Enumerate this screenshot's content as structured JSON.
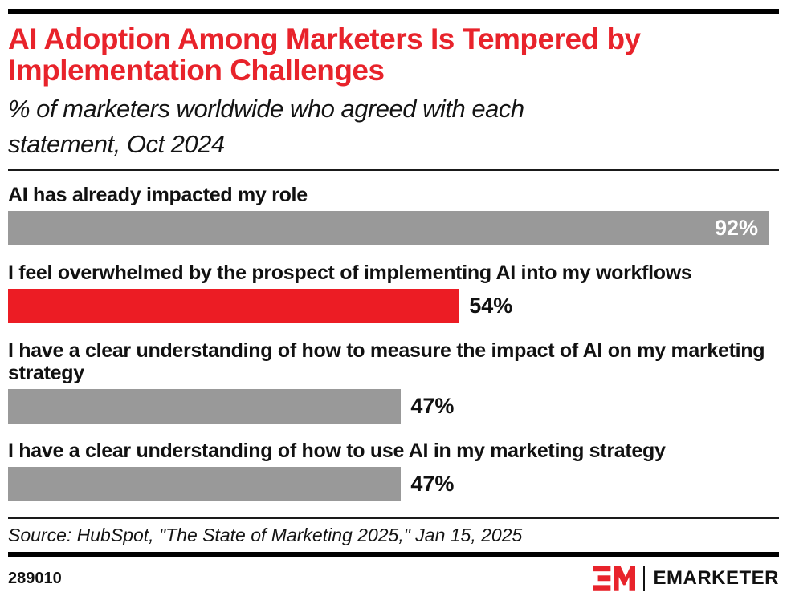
{
  "page": {
    "background": "#ffffff",
    "accent_red": "#E8232B",
    "bar_red": "#EC1C24",
    "bar_gray": "#999999"
  },
  "header": {
    "title_line1": "AI Adoption Among Marketers Is Tempered by",
    "title_line2": "Implementation Challenges",
    "subtitle_line1": "% of marketers worldwide who agreed with each",
    "subtitle_line2": "statement, Oct 2024"
  },
  "chart_data": {
    "type": "bar",
    "orientation": "horizontal",
    "title": "AI Adoption Among Marketers Is Tempered by Implementation Challenges",
    "subtitle": "% of marketers worldwide who agreed with each statement, Oct 2024",
    "unit": "%",
    "xlim": [
      0,
      92.2
    ],
    "grid": false,
    "legend": false,
    "bars": [
      {
        "label": "AI has already impacted my role",
        "value": 92,
        "value_label": "92%",
        "color": "#999999",
        "value_position": "inside"
      },
      {
        "label": "I feel overwhelmed by the prospect of implementing AI into my workflows",
        "value": 54,
        "value_label": "54%",
        "color": "#EC1C24",
        "value_position": "outside"
      },
      {
        "label": "I have a clear understanding of how to measure the impact of AI on my marketing strategy",
        "value": 47,
        "value_label": "47%",
        "color": "#999999",
        "value_position": "outside"
      },
      {
        "label": "I have a clear understanding of how to use AI in my marketing strategy",
        "value": 47,
        "value_label": "47%",
        "color": "#999999",
        "value_position": "outside"
      }
    ]
  },
  "footer": {
    "source": "Source: HubSpot, \"The State of Marketing 2025,\" Jan 15, 2025",
    "chart_id": "289010",
    "brand": "EMARKETER"
  }
}
